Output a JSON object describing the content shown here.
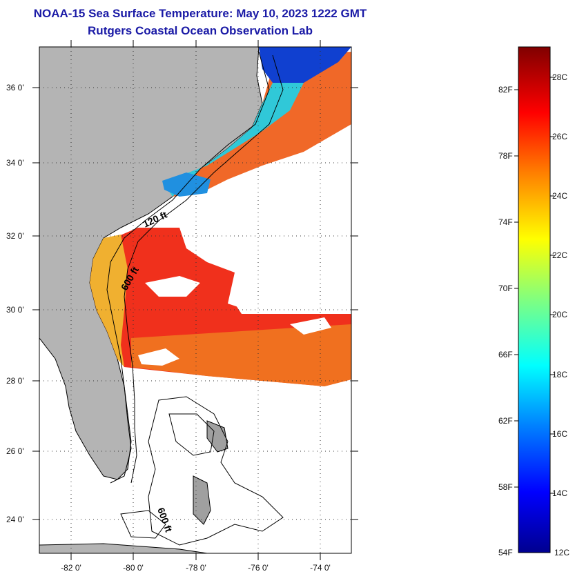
{
  "title": {
    "line1": "NOAA-15 Sea Surface Temperature:  May 10, 2023 1222 GMT",
    "line2": "Rutgers Coastal Ocean Observation Lab"
  },
  "axes": {
    "lat_labels": [
      "36 0'",
      "34 0'",
      "32 0'",
      "30 0'",
      "28 0'",
      "26 0'",
      "24 0'"
    ],
    "lon_labels": [
      "-82 0'",
      "-80 0'",
      "-78 0'",
      "-76 0'",
      "-74 0'"
    ]
  },
  "contours": {
    "label_120": "120 ft",
    "label_600a": "600 ft",
    "label_600b": "600 ft"
  },
  "colorbar": {
    "fahrenheit": [
      "82F",
      "78F",
      "74F",
      "70F",
      "66F",
      "62F",
      "58F",
      "54F"
    ],
    "celsius": [
      "28C",
      "26C",
      "24C",
      "22C",
      "20C",
      "18C",
      "16C",
      "14C",
      "12C"
    ]
  },
  "colors": {
    "title": "#1a1aa6",
    "land": "#b4b4b4",
    "cloud": "#ffffff",
    "warm": "#f0301c",
    "mid": "#f0a020",
    "cool": "#30c0e0",
    "cold": "#1030c0"
  }
}
